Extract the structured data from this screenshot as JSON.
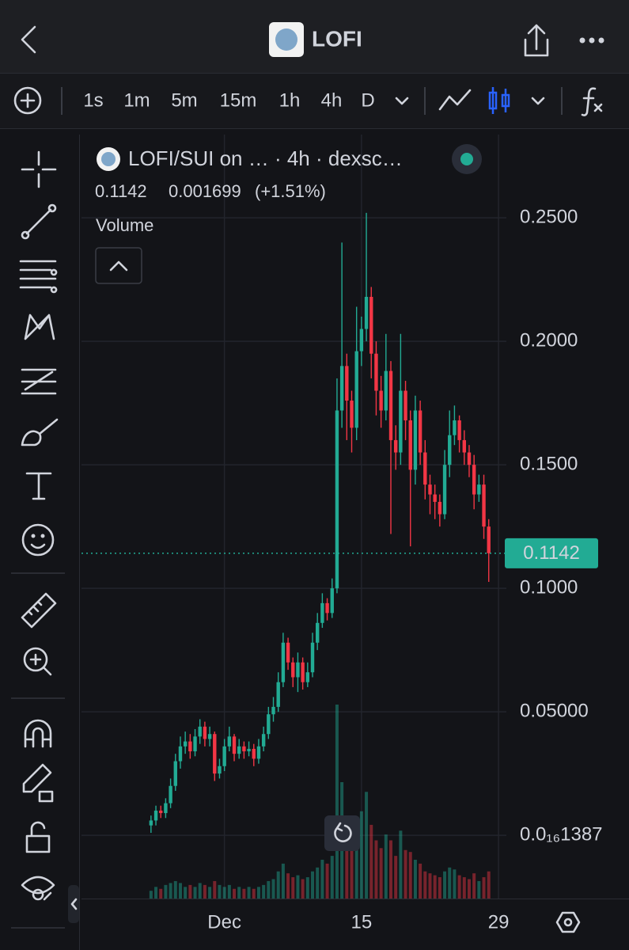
{
  "header": {
    "title": "LOFI"
  },
  "toolbar": {
    "intervals": [
      "1s",
      "1m",
      "5m",
      "15m",
      "1h",
      "4h",
      "D"
    ],
    "active": "4h"
  },
  "chart_data": {
    "type": "candlestick",
    "title": "LOFI/SUI on …  · 4h · dexsc…",
    "volume_label": "Volume",
    "last_price": 0.1142,
    "change": 0.001699,
    "change_label": "(+1.51%)",
    "up_color": "#22ab94",
    "down_color": "#f23645",
    "grid": true,
    "x": [
      -6.5,
      -6,
      -5.5,
      -5,
      -4.5,
      -4,
      -3.5,
      -3,
      -2.5,
      -2,
      -1.5,
      -1,
      -0.5,
      0,
      0.5,
      1,
      1.5,
      2,
      2.5,
      3,
      3.5,
      4,
      4.5,
      5,
      5.5,
      6,
      6.5,
      7,
      7.5,
      8,
      8.5,
      9,
      9.5,
      10,
      10.5,
      11,
      11.5,
      12,
      12.5,
      13,
      13.5,
      14,
      14.5,
      15,
      15.5,
      16,
      16.5,
      17,
      17.5,
      18,
      18.5,
      19,
      19.5,
      20,
      20.5,
      21,
      21.5,
      22,
      22.5,
      23,
      23.5,
      24,
      24.5,
      25,
      25.5,
      26,
      26.5,
      27,
      27.5,
      28
    ],
    "open": [
      0.004,
      0.006,
      0.01,
      0.009,
      0.013,
      0.02,
      0.03,
      0.036,
      0.038,
      0.034,
      0.04,
      0.044,
      0.039,
      0.041,
      0.025,
      0.028,
      0.036,
      0.04,
      0.033,
      0.036,
      0.034,
      0.035,
      0.031,
      0.036,
      0.041,
      0.049,
      0.052,
      0.062,
      0.078,
      0.07,
      0.064,
      0.07,
      0.062,
      0.066,
      0.078,
      0.086,
      0.094,
      0.09,
      0.1,
      0.172,
      0.19,
      0.176,
      0.165,
      0.196,
      0.205,
      0.218,
      0.195,
      0.18,
      0.172,
      0.188,
      0.16,
      0.155,
      0.18,
      0.168,
      0.148,
      0.172,
      0.155,
      0.142,
      0.138,
      0.135,
      0.13,
      0.15,
      0.162,
      0.168,
      0.16,
      0.155,
      0.15,
      0.138,
      0.142,
      0.125
    ],
    "high": [
      0.008,
      0.012,
      0.012,
      0.015,
      0.023,
      0.033,
      0.04,
      0.042,
      0.041,
      0.043,
      0.047,
      0.046,
      0.044,
      0.042,
      0.031,
      0.039,
      0.044,
      0.041,
      0.039,
      0.038,
      0.038,
      0.037,
      0.039,
      0.044,
      0.052,
      0.056,
      0.066,
      0.082,
      0.08,
      0.072,
      0.074,
      0.072,
      0.07,
      0.082,
      0.09,
      0.098,
      0.096,
      0.104,
      0.185,
      0.24,
      0.195,
      0.18,
      0.214,
      0.21,
      0.252,
      0.222,
      0.2,
      0.186,
      0.203,
      0.192,
      0.166,
      0.203,
      0.184,
      0.172,
      0.178,
      0.176,
      0.16,
      0.146,
      0.142,
      0.138,
      0.156,
      0.172,
      0.174,
      0.17,
      0.164,
      0.158,
      0.154,
      0.146,
      0.146,
      0.128
    ],
    "low": [
      0.001,
      0.004,
      0.007,
      0.007,
      0.011,
      0.018,
      0.027,
      0.033,
      0.031,
      0.032,
      0.037,
      0.036,
      0.036,
      0.022,
      0.023,
      0.026,
      0.034,
      0.03,
      0.031,
      0.031,
      0.032,
      0.028,
      0.029,
      0.034,
      0.039,
      0.046,
      0.05,
      0.06,
      0.067,
      0.06,
      0.058,
      0.059,
      0.06,
      0.064,
      0.075,
      0.084,
      0.087,
      0.088,
      0.098,
      0.165,
      0.16,
      0.155,
      0.16,
      0.19,
      0.2,
      0.185,
      0.17,
      0.165,
      0.168,
      0.122,
      0.148,
      0.15,
      0.16,
      0.117,
      0.142,
      0.15,
      0.136,
      0.13,
      0.128,
      0.125,
      0.128,
      0.145,
      0.158,
      0.155,
      0.15,
      0.145,
      0.132,
      0.135,
      0.12,
      0.1026
    ],
    "close": [
      0.006,
      0.01,
      0.009,
      0.013,
      0.02,
      0.03,
      0.036,
      0.038,
      0.034,
      0.04,
      0.044,
      0.039,
      0.041,
      0.025,
      0.028,
      0.036,
      0.04,
      0.033,
      0.036,
      0.034,
      0.035,
      0.031,
      0.036,
      0.041,
      0.049,
      0.052,
      0.062,
      0.078,
      0.07,
      0.064,
      0.07,
      0.062,
      0.066,
      0.078,
      0.086,
      0.094,
      0.09,
      0.1,
      0.172,
      0.19,
      0.176,
      0.165,
      0.196,
      0.205,
      0.218,
      0.195,
      0.18,
      0.172,
      0.188,
      0.16,
      0.155,
      0.18,
      0.168,
      0.148,
      0.172,
      0.155,
      0.142,
      0.138,
      0.135,
      0.13,
      0.15,
      0.162,
      0.168,
      0.16,
      0.155,
      0.15,
      0.138,
      0.142,
      0.125,
      0.1142
    ],
    "volume": [
      4,
      6,
      5,
      7,
      8,
      9,
      8,
      6,
      7,
      6,
      8,
      7,
      6,
      9,
      7,
      6,
      7,
      5,
      6,
      5,
      6,
      5,
      6,
      7,
      9,
      10,
      14,
      18,
      13,
      11,
      12,
      10,
      11,
      14,
      16,
      20,
      18,
      22,
      100,
      60,
      35,
      28,
      40,
      45,
      55,
      38,
      30,
      26,
      33,
      30,
      22,
      35,
      25,
      24,
      20,
      18,
      14,
      13,
      12,
      11,
      14,
      16,
      15,
      12,
      11,
      10,
      13,
      9,
      11,
      14
    ],
    "xlim": [
      -13.6,
      29.8
    ],
    "xticks": [
      {
        "value": 1,
        "label": "Dec"
      },
      15,
      29
    ],
    "ylim": [
      -0.0256,
      0.2837
    ],
    "yticks": [
      {
        "value": 1.387e-17,
        "label": "0.0₁₆1387"
      },
      {
        "value": 0.05,
        "label": "0.05000"
      },
      {
        "value": 0.1,
        "label": "0.1000"
      },
      {
        "value": 0.15,
        "label": "0.1500"
      },
      {
        "value": 0.2,
        "label": "0.2000"
      },
      {
        "value": 0.25,
        "label": "0.2500"
      }
    ]
  }
}
